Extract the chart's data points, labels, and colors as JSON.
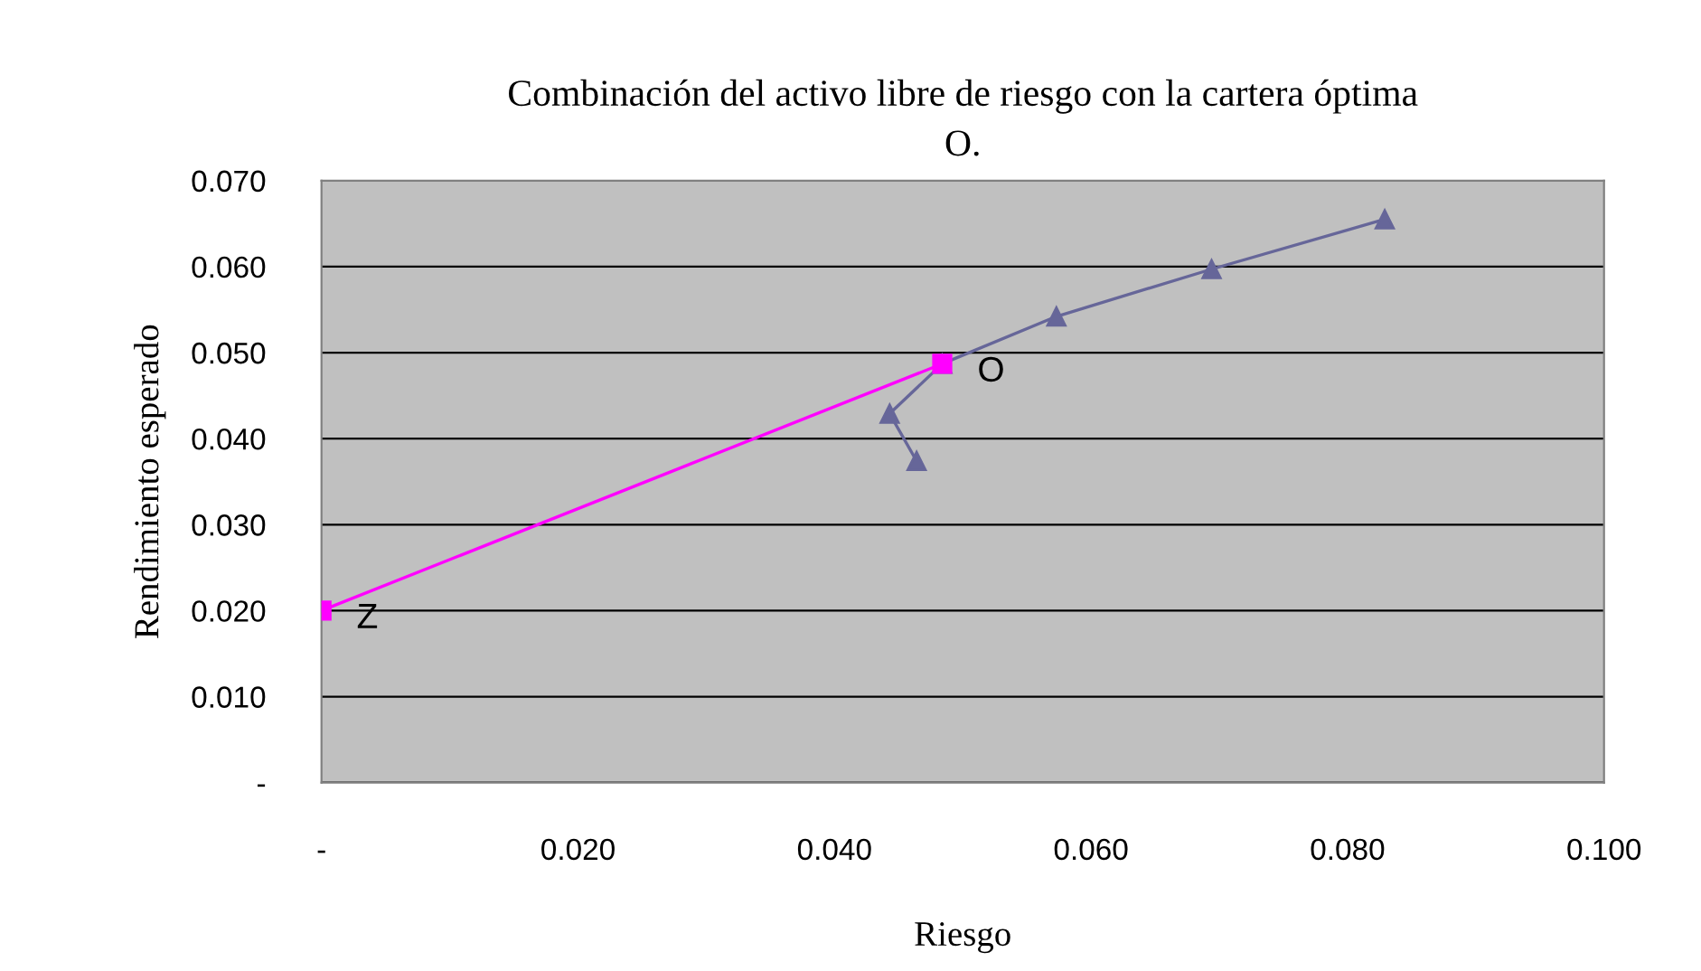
{
  "chart_data": {
    "type": "line",
    "title": "Combinación del activo libre de riesgo con la cartera óptima\nO.",
    "xlabel": "Riesgo",
    "ylabel": "Rendimiento esperado",
    "series": [
      {
        "color": "#666699",
        "marker": "triangle",
        "x": [
          0.0464,
          0.0443,
          0.0484,
          0.0573,
          0.0694,
          0.0829
        ],
        "values": [
          0.0374,
          0.0429,
          0.0487,
          0.0542,
          0.0597,
          0.0655
        ]
      },
      {
        "color": "#ff00ff",
        "marker": "square",
        "x": [
          0,
          0.0484
        ],
        "values": [
          0.02,
          0.0487
        ]
      }
    ],
    "annotations": [
      {
        "text": "Z",
        "x": 0,
        "y": 0.02
      },
      {
        "text": "O",
        "x": 0.0484,
        "y": 0.0487
      }
    ],
    "xlim": [
      0,
      0.1
    ],
    "xticks": [
      {
        "value": 0,
        "label": "-"
      },
      {
        "value": 0.02,
        "label": "0.020"
      },
      {
        "value": 0.04,
        "label": "0.040"
      },
      {
        "value": 0.06,
        "label": "0.060"
      },
      {
        "value": 0.08,
        "label": "0.080"
      },
      {
        "value": 0.1,
        "label": "0.100"
      }
    ],
    "ylim": [
      0,
      0.07
    ],
    "yticks": [
      {
        "value": 0,
        "label": "-"
      },
      {
        "value": 0.01,
        "label": "0.010"
      },
      {
        "value": 0.02,
        "label": "0.020"
      },
      {
        "value": 0.03,
        "label": "0.030"
      },
      {
        "value": 0.04,
        "label": "0.040"
      },
      {
        "value": 0.05,
        "label": "0.050"
      },
      {
        "value": 0.06,
        "label": "0.060"
      },
      {
        "value": 0.07,
        "label": "0.070"
      }
    ],
    "grid": "y",
    "legend": false
  }
}
